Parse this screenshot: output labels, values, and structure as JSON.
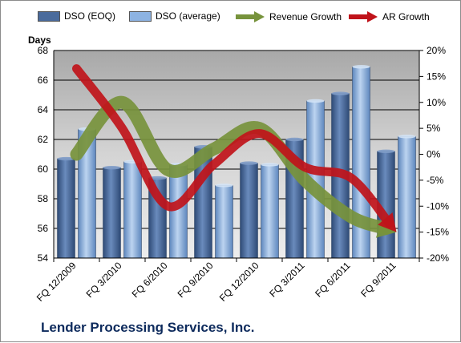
{
  "chart_data": {
    "type": "bar",
    "categories": [
      "FQ 12/2009",
      "FQ 3/2010",
      "FQ 6/2010",
      "FQ 9/2010",
      "FQ 12/2010",
      "FQ 3/2011",
      "FQ 6/2011",
      "FQ 9/2011"
    ],
    "series": [
      {
        "name": "DSO (EOQ)",
        "axis": "left",
        "kind": "bar",
        "values": [
          60.7,
          60.1,
          59.4,
          61.5,
          60.4,
          62.0,
          65.1,
          61.2
        ],
        "color": "#4a6b9c"
      },
      {
        "name": "DSO (average)",
        "axis": "left",
        "kind": "bar",
        "values": [
          62.7,
          60.5,
          60.3,
          58.9,
          60.3,
          64.6,
          66.9,
          62.2
        ],
        "color": "#8db3e2"
      },
      {
        "name": "Revenue Growth",
        "axis": "right",
        "kind": "line",
        "values": [
          0.0,
          10.0,
          -3.0,
          1.0,
          5.0,
          -5.0,
          -12.0,
          -15.0
        ],
        "color": "#77933c"
      },
      {
        "name": "AR Growth",
        "axis": "right",
        "kind": "line",
        "values": [
          16.5,
          5.0,
          -10.0,
          -2.0,
          4.0,
          -2.5,
          -4.5,
          -15.0
        ],
        "color": "#c0131a"
      }
    ],
    "ylabel": "Days",
    "ylim": [
      54,
      68
    ],
    "yticks": [
      "54",
      "56",
      "58",
      "60",
      "62",
      "64",
      "66",
      "68"
    ],
    "y2lim": [
      -20,
      20
    ],
    "y2ticks": [
      "-20%",
      "-15%",
      "-10%",
      "-5%",
      "0%",
      "5%",
      "10%",
      "15%",
      "20%"
    ],
    "grid": true,
    "legend": "top",
    "plot_background": "#c0c0c0"
  },
  "footer": {
    "company": "Lender Processing Services, Inc."
  }
}
